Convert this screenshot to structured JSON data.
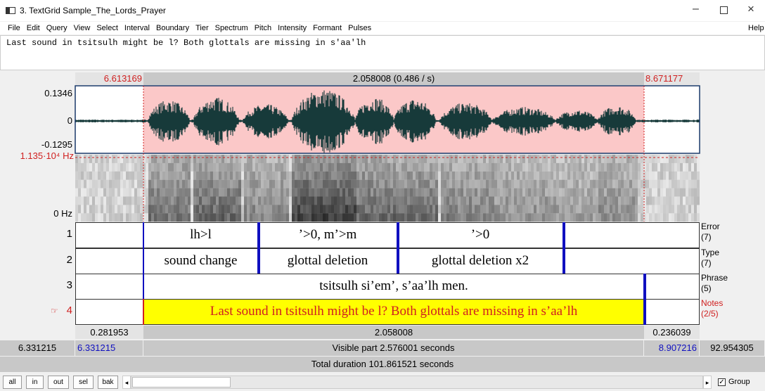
{
  "window": {
    "title": "3. TextGrid Sample_The_Lords_Prayer"
  },
  "menu": {
    "items": [
      "File",
      "Edit",
      "Query",
      "View",
      "Select",
      "Interval",
      "Boundary",
      "Tier",
      "Spectrum",
      "Pitch",
      "Intensity",
      "Formant",
      "Pulses"
    ],
    "help": "Help"
  },
  "text_editor": "Last sound in tsitsulh might be l? Both glottals are missing in s'aa'lh",
  "selection_bar": {
    "start": "6.613169",
    "duration": "2.058008 (0.486 / s)",
    "end": "8.671177"
  },
  "waveform": {
    "max": "0.1346",
    "zero": "0",
    "min": "-0.1295"
  },
  "spectrogram": {
    "max": "1.135·10⁴ Hz",
    "min": "0 Hz"
  },
  "tiers": [
    {
      "number": "1",
      "name": "Error",
      "count": "(7)",
      "intervals": [
        "lh>l",
        "’>0, m’>m",
        "’>0"
      ]
    },
    {
      "number": "2",
      "name": "Type",
      "count": "(7)",
      "intervals": [
        "sound change",
        "glottal deletion",
        "glottal deletion x2"
      ]
    },
    {
      "number": "3",
      "name": "Phrase",
      "count": "(5)",
      "intervals": [
        "tsitsulh si’em’, s’aa’lh men."
      ]
    },
    {
      "number": "4",
      "name": "Notes",
      "count": "(2/5)",
      "intervals": [
        "Last sound in tsitsulh might be l? Both glottals are missing in s’aa’lh"
      ]
    }
  ],
  "duration_bar": {
    "left": "0.281953",
    "selection": "2.058008",
    "right": "0.236039"
  },
  "visible_bar": {
    "window_start": "6.331215",
    "visible_start": "6.331215",
    "label": "Visible part 2.576001 seconds",
    "visible_end": "8.907216",
    "window_end": "92.954305"
  },
  "total_bar": "Total duration 101.861521 seconds",
  "buttons": [
    "all",
    "in",
    "out",
    "sel",
    "bak"
  ],
  "group": "Group"
}
